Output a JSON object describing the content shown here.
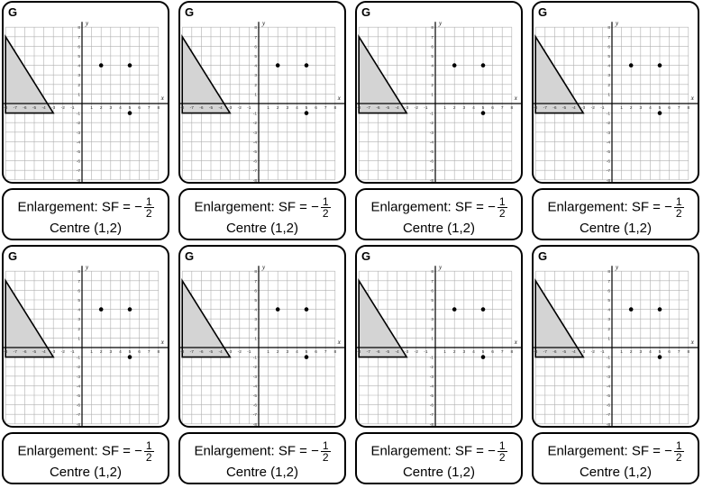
{
  "cards": [
    {
      "letter": "G",
      "sf_prefix": "Enlargement: SF = −",
      "sf_num": "1",
      "sf_den": "2",
      "centre": "Centre (1,2)"
    },
    {
      "letter": "G",
      "sf_prefix": "Enlargement: SF = −",
      "sf_num": "1",
      "sf_den": "2",
      "centre": "Centre (1,2)"
    },
    {
      "letter": "G",
      "sf_prefix": "Enlargement: SF = −",
      "sf_num": "1",
      "sf_den": "2",
      "centre": "Centre (1,2)"
    },
    {
      "letter": "G",
      "sf_prefix": "Enlargement: SF = −",
      "sf_num": "1",
      "sf_den": "2",
      "centre": "Centre (1,2)"
    },
    {
      "letter": "G",
      "sf_prefix": "Enlargement: SF = −",
      "sf_num": "1",
      "sf_den": "2",
      "centre": "Centre (1,2)"
    },
    {
      "letter": "G",
      "sf_prefix": "Enlargement: SF = −",
      "sf_num": "1",
      "sf_den": "2",
      "centre": "Centre (1,2)"
    },
    {
      "letter": "G",
      "sf_prefix": "Enlargement: SF = −",
      "sf_num": "1",
      "sf_den": "2",
      "centre": "Centre (1,2)"
    },
    {
      "letter": "G",
      "sf_prefix": "Enlargement: SF = −",
      "sf_num": "1",
      "sf_den": "2",
      "centre": "Centre (1,2)"
    }
  ],
  "grid": {
    "x_axis_label": "x",
    "y_axis_label": "y",
    "x_range": [
      -8,
      8
    ],
    "y_range": [
      -8,
      8
    ],
    "x_tick_labels": [
      "-8",
      "-7",
      "-6",
      "-5",
      "-4",
      "-3",
      "-2",
      "-1",
      "1",
      "2",
      "3",
      "4",
      "5",
      "6",
      "7",
      "8"
    ],
    "y_tick_labels": [
      "8",
      "7",
      "6",
      "5",
      "4",
      "3",
      "2",
      "1",
      "-1",
      "-2",
      "-3",
      "-4",
      "-5",
      "-6",
      "-7",
      "-8"
    ],
    "triangle_vertices": [
      [
        -8,
        7
      ],
      [
        -8,
        -1
      ],
      [
        -3,
        -1
      ]
    ],
    "points": [
      [
        2,
        4
      ],
      [
        5,
        4
      ],
      [
        5,
        -1
      ]
    ],
    "colors": {
      "triangle_fill": "#d4d4d4",
      "grid_line": "#b0b0b0",
      "axis": "#000000",
      "point": "#000000"
    }
  }
}
